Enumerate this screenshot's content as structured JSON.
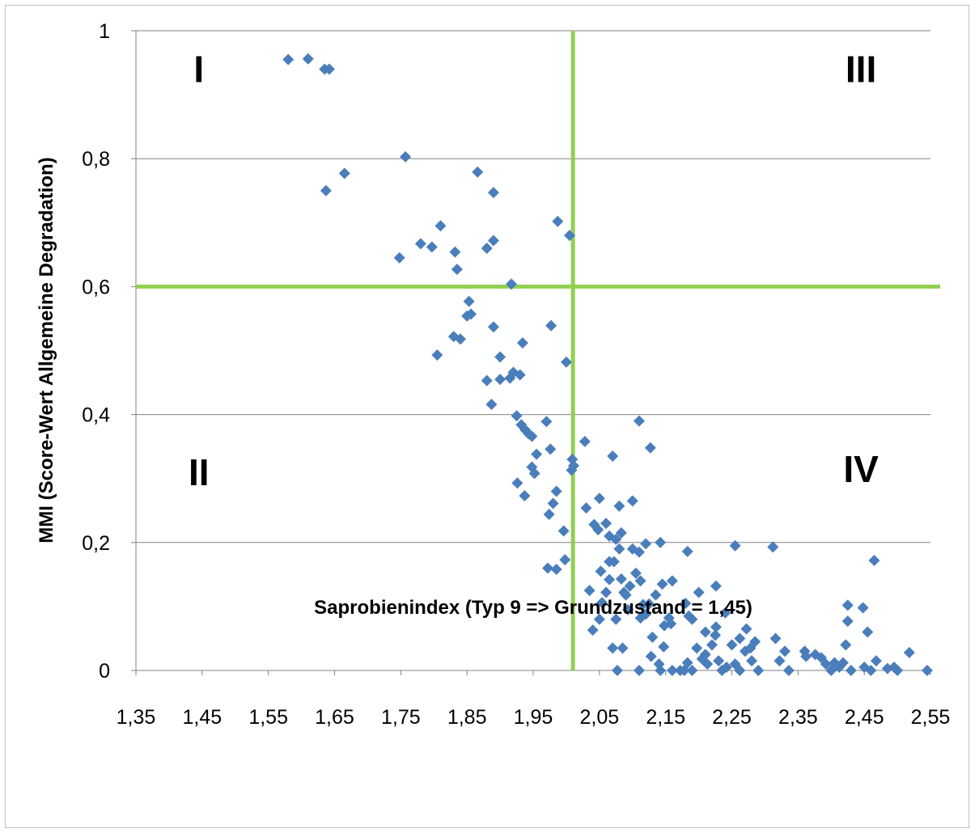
{
  "chart_data": {
    "type": "scatter",
    "xlabel": "Saprobienindex (Typ 9 => Grundzustand  = 1,45)",
    "ylabel": "MMI (Score-Wert  Allgemeine  Degradation)",
    "xlim": [
      1.35,
      2.55
    ],
    "ylim": [
      0,
      1
    ],
    "x_ticks": [
      "1,35",
      "1,45",
      "1,55",
      "1,65",
      "1,75",
      "1,85",
      "1,95",
      "2,05",
      "2,15",
      "2,25",
      "2,35",
      "2,45",
      "2,55"
    ],
    "x_tick_values": [
      1.35,
      1.45,
      1.55,
      1.65,
      1.75,
      1.85,
      1.95,
      2.05,
      2.15,
      2.25,
      2.35,
      2.45,
      2.55
    ],
    "y_ticks": [
      "0",
      "0,2",
      "0,4",
      "0,6",
      "0,8",
      "1"
    ],
    "y_tick_values": [
      0,
      0.2,
      0.4,
      0.6,
      0.8,
      1
    ],
    "grid": "horizontal",
    "marker": "diamond",
    "colors": {
      "points": "#4a7ebb",
      "threshold": "#92d050",
      "grid": "#808080"
    },
    "thresholds": {
      "x": 2.01,
      "y": 0.6
    },
    "quadrant_labels": [
      {
        "text": "I",
        "x": 1.445,
        "y": 0.935
      },
      {
        "text": "III",
        "x": 2.445,
        "y": 0.935
      },
      {
        "text": "II",
        "x": 1.445,
        "y": 0.305
      },
      {
        "text": "IV",
        "x": 2.445,
        "y": 0.31
      }
    ],
    "points": [
      [
        1.58,
        0.955
      ],
      [
        1.61,
        0.956
      ],
      [
        1.635,
        0.94
      ],
      [
        1.642,
        0.94
      ],
      [
        1.637,
        0.75
      ],
      [
        1.665,
        0.777
      ],
      [
        1.757,
        0.803
      ],
      [
        1.748,
        0.645
      ],
      [
        1.78,
        0.667
      ],
      [
        1.797,
        0.662
      ],
      [
        1.81,
        0.695
      ],
      [
        1.832,
        0.654
      ],
      [
        1.835,
        0.627
      ],
      [
        1.866,
        0.779
      ],
      [
        1.89,
        0.747
      ],
      [
        1.88,
        0.66
      ],
      [
        1.89,
        0.672
      ],
      [
        1.917,
        0.604
      ],
      [
        1.987,
        0.702
      ],
      [
        2.005,
        0.68
      ],
      [
        1.853,
        0.577
      ],
      [
        1.85,
        0.554
      ],
      [
        1.856,
        0.557
      ],
      [
        1.83,
        0.522
      ],
      [
        1.84,
        0.518
      ],
      [
        1.805,
        0.493
      ],
      [
        1.89,
        0.537
      ],
      [
        1.977,
        0.539
      ],
      [
        1.9,
        0.49
      ],
      [
        1.92,
        0.466
      ],
      [
        1.934,
        0.512
      ],
      [
        1.88,
        0.453
      ],
      [
        1.9,
        0.455
      ],
      [
        1.915,
        0.457
      ],
      [
        1.93,
        0.462
      ],
      [
        2.0,
        0.482
      ],
      [
        1.887,
        0.416
      ],
      [
        1.925,
        0.398
      ],
      [
        1.932,
        0.384
      ],
      [
        1.938,
        0.376
      ],
      [
        1.943,
        0.37
      ],
      [
        1.948,
        0.366
      ],
      [
        1.97,
        0.389
      ],
      [
        1.955,
        0.338
      ],
      [
        1.976,
        0.346
      ],
      [
        1.948,
        0.318
      ],
      [
        1.952,
        0.308
      ],
      [
        2.009,
        0.33
      ],
      [
        2.011,
        0.32
      ],
      [
        2.008,
        0.313
      ],
      [
        2.028,
        0.358
      ],
      [
        1.926,
        0.293
      ],
      [
        1.937,
        0.273
      ],
      [
        1.98,
        0.261
      ],
      [
        1.985,
        0.28
      ],
      [
        1.974,
        0.244
      ],
      [
        1.996,
        0.218
      ],
      [
        1.972,
        0.16
      ],
      [
        1.985,
        0.158
      ],
      [
        1.998,
        0.173
      ],
      [
        2.03,
        0.254
      ],
      [
        2.05,
        0.269
      ],
      [
        2.07,
        0.335
      ],
      [
        2.042,
        0.228
      ],
      [
        2.048,
        0.22
      ],
      [
        2.06,
        0.23
      ],
      [
        2.065,
        0.21
      ],
      [
        2.08,
        0.257
      ],
      [
        2.083,
        0.215
      ],
      [
        2.075,
        0.205
      ],
      [
        2.1,
        0.265
      ],
      [
        2.11,
        0.39
      ],
      [
        2.127,
        0.348
      ],
      [
        2.035,
        0.125
      ],
      [
        2.054,
        0.106
      ],
      [
        2.052,
        0.155
      ],
      [
        2.065,
        0.17
      ],
      [
        2.06,
        0.122
      ],
      [
        2.065,
        0.142
      ],
      [
        2.072,
        0.17
      ],
      [
        2.08,
        0.19
      ],
      [
        2.083,
        0.143
      ],
      [
        2.087,
        0.122
      ],
      [
        2.09,
        0.118
      ],
      [
        2.096,
        0.132
      ],
      [
        2.093,
        0.095
      ],
      [
        2.1,
        0.19
      ],
      [
        2.105,
        0.152
      ],
      [
        2.11,
        0.185
      ],
      [
        2.112,
        0.14
      ],
      [
        2.12,
        0.198
      ],
      [
        2.116,
        0.103
      ],
      [
        2.112,
        0.082
      ],
      [
        2.12,
        0.088
      ],
      [
        2.125,
        0.104
      ],
      [
        2.142,
        0.2
      ],
      [
        2.135,
        0.118
      ],
      [
        2.145,
        0.135
      ],
      [
        2.16,
        0.14
      ],
      [
        2.155,
        0.082
      ],
      [
        2.158,
        0.073
      ],
      [
        2.148,
        0.07
      ],
      [
        2.183,
        0.186
      ],
      [
        2.18,
        0.105
      ],
      [
        2.185,
        0.085
      ],
      [
        2.19,
        0.08
      ],
      [
        2.2,
        0.122
      ],
      [
        2.21,
        0.06
      ],
      [
        2.226,
        0.132
      ],
      [
        2.226,
        0.068
      ],
      [
        2.225,
        0.055
      ],
      [
        2.255,
        0.195
      ],
      [
        2.312,
        0.193
      ],
      [
        2.04,
        0.063
      ],
      [
        2.05,
        0.08
      ],
      [
        2.075,
        0.08
      ],
      [
        2.07,
        0.035
      ],
      [
        2.085,
        0.035
      ],
      [
        2.077,
        0.0
      ],
      [
        2.11,
        0.0
      ],
      [
        2.128,
        0.022
      ],
      [
        2.13,
        0.052
      ],
      [
        2.142,
        0.0
      ],
      [
        2.147,
        0.037
      ],
      [
        2.14,
        0.01
      ],
      [
        2.16,
        0.0
      ],
      [
        2.172,
        0.0
      ],
      [
        2.178,
        0.0
      ],
      [
        2.183,
        0.012
      ],
      [
        2.19,
        0.0
      ],
      [
        2.197,
        0.035
      ],
      [
        2.205,
        0.018
      ],
      [
        2.21,
        0.025
      ],
      [
        2.213,
        0.01
      ],
      [
        2.22,
        0.04
      ],
      [
        2.23,
        0.015
      ],
      [
        2.24,
        0.09
      ],
      [
        2.235,
        0.0
      ],
      [
        2.242,
        0.005
      ],
      [
        2.25,
        0.04
      ],
      [
        2.255,
        0.01
      ],
      [
        2.262,
        0.0
      ],
      [
        2.262,
        0.05
      ],
      [
        2.27,
        0.03
      ],
      [
        2.272,
        0.065
      ],
      [
        2.278,
        0.035
      ],
      [
        2.285,
        0.045
      ],
      [
        2.28,
        0.015
      ],
      [
        2.29,
        0.0
      ],
      [
        2.316,
        0.05
      ],
      [
        2.322,
        0.015
      ],
      [
        2.33,
        0.03
      ],
      [
        2.336,
        0.0
      ],
      [
        2.36,
        0.03
      ],
      [
        2.362,
        0.022
      ],
      [
        2.376,
        0.025
      ],
      [
        2.385,
        0.02
      ],
      [
        2.392,
        0.01
      ],
      [
        2.4,
        0.0
      ],
      [
        2.405,
        0.012
      ],
      [
        2.412,
        0.005
      ],
      [
        2.418,
        0.012
      ],
      [
        2.422,
        0.04
      ],
      [
        2.425,
        0.102
      ],
      [
        2.425,
        0.077
      ],
      [
        2.43,
        0.0
      ],
      [
        2.448,
        0.098
      ],
      [
        2.455,
        0.06
      ],
      [
        2.45,
        0.005
      ],
      [
        2.46,
        0.0
      ],
      [
        2.465,
        0.172
      ],
      [
        2.468,
        0.015
      ],
      [
        2.485,
        0.003
      ],
      [
        2.495,
        0.005
      ],
      [
        2.5,
        0.0
      ],
      [
        2.518,
        0.028
      ],
      [
        2.545,
        0.0
      ]
    ]
  }
}
